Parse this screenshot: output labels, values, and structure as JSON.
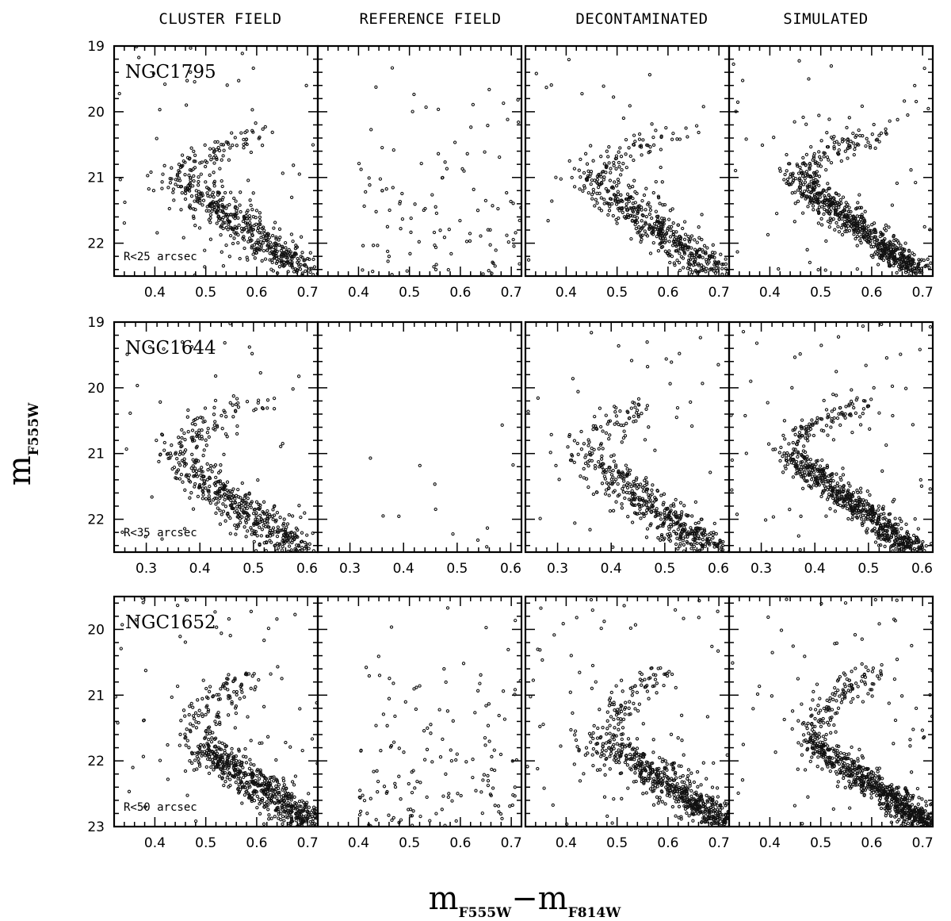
{
  "chart_data": {
    "type": "scatter",
    "columns": [
      "CLUSTER FIELD",
      "REFERENCE FIELD",
      "DECONTAMINATED",
      "SIMULATED"
    ],
    "xlabel": {
      "main": "m",
      "sub1": "F555W",
      "dash": "−",
      "main2": "m",
      "sub2": "F814W"
    },
    "ylabel": {
      "main": "m",
      "sub": "F555W"
    },
    "rows": [
      {
        "cluster": "NGC1795",
        "radius_label": "R<25 arcsec",
        "xlim": [
          0.32,
          0.72
        ],
        "ylim": [
          19,
          22.5
        ],
        "xticks": [
          0.4,
          0.5,
          0.6,
          0.7
        ],
        "xtick_labels": [
          "0.4",
          "0.5",
          "0.6",
          "0.7"
        ],
        "yticks": [
          19,
          20,
          21,
          22
        ],
        "ytick_labels": [
          "19",
          "20",
          "21",
          "22"
        ],
        "track": {
          "turnoff_color": 0.45,
          "turnoff_mag": 21.0,
          "slope_color": 0.24,
          "slope_mag": 1.45,
          "sg_end_color": 0.62,
          "sg_end_mag": 20.3
        },
        "counts": {
          "cluster": 600,
          "reference": 110,
          "decontaminated": 560,
          "simulated": 800
        }
      },
      {
        "cluster": "NGC1644",
        "radius_label": "R<35 arcsec",
        "xlim": [
          0.24,
          0.62
        ],
        "ylim": [
          19,
          22.5
        ],
        "xticks": [
          0.3,
          0.4,
          0.5,
          0.6
        ],
        "xtick_labels": [
          "0.3",
          "0.4",
          "0.5",
          "0.6"
        ],
        "yticks": [
          19,
          20,
          21,
          22
        ],
        "ytick_labels": [
          "19",
          "20",
          "21",
          "22"
        ],
        "track": {
          "turnoff_color": 0.35,
          "turnoff_mag": 21.0,
          "slope_color": 0.24,
          "slope_mag": 1.5,
          "sg_end_color": 0.5,
          "sg_end_mag": 20.2
        },
        "counts": {
          "cluster": 560,
          "reference": 12,
          "decontaminated": 550,
          "simulated": 780
        }
      },
      {
        "cluster": "NGC1652",
        "radius_label": "R<50 arcsec",
        "xlim": [
          0.32,
          0.72
        ],
        "ylim": [
          19.5,
          23
        ],
        "xticks": [
          0.4,
          0.5,
          0.6,
          0.7
        ],
        "xtick_labels": [
          "0.4",
          "0.5",
          "0.6",
          "0.7"
        ],
        "yticks": [
          20,
          21,
          22,
          23
        ],
        "ytick_labels": [
          "20",
          "21",
          "22",
          "23"
        ],
        "track": {
          "turnoff_color": 0.48,
          "turnoff_mag": 21.7,
          "slope_color": 0.24,
          "slope_mag": 1.3,
          "sg_end_color": 0.6,
          "sg_end_mag": 20.6
        },
        "counts": {
          "cluster": 780,
          "reference": 150,
          "decontaminated": 760,
          "simulated": 900
        }
      }
    ]
  }
}
